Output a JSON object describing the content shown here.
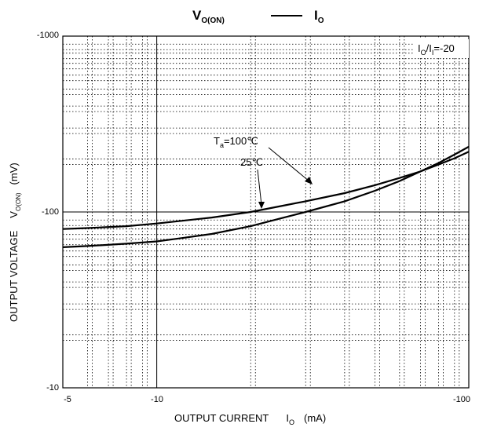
{
  "chart_data": {
    "type": "line",
    "title": {
      "left": "V",
      "left_sub": "O(ON)",
      "dash": "——",
      "right": "I",
      "right_sub": "O"
    },
    "xlabel": {
      "main": "OUTPUT CURRENT",
      "sym": "I",
      "sub": "O",
      "unit": "(mA)"
    },
    "ylabel": {
      "main": "OUTPUT VOLTAGE",
      "sym": "V",
      "sub": "O(ON)",
      "unit": "(mV)"
    },
    "x_scale": "log",
    "y_scale": "log",
    "xlim": [
      -5,
      -100
    ],
    "ylim": [
      -10,
      -1000
    ],
    "x_ticks": [
      "-5",
      "-10",
      "-100"
    ],
    "y_ticks": [
      "-10",
      "-100",
      "-1000"
    ],
    "grid": true,
    "condition": {
      "sym": "I",
      "sub1": "O",
      "slash": "/",
      "sym2": "I",
      "sub2": "I",
      "value": "=-20"
    },
    "series": [
      {
        "name": "Ta=100℃",
        "label": {
          "sym": "T",
          "sub": "a",
          "value": "=100℃"
        },
        "x": [
          -5,
          -6,
          -8,
          -10,
          -12,
          -15,
          -20,
          -25,
          -30,
          -40,
          -50,
          -60,
          -70,
          -80,
          -90,
          -100
        ],
        "y": [
          -80,
          -81,
          -83,
          -86,
          -89,
          -93,
          -100,
          -108,
          -115,
          -128,
          -142,
          -156,
          -170,
          -186,
          -202,
          -220
        ]
      },
      {
        "name": "25℃",
        "label": {
          "sym": "",
          "sub": "",
          "value": "25℃"
        },
        "x": [
          -5,
          -6,
          -8,
          -10,
          -12,
          -15,
          -20,
          -25,
          -30,
          -40,
          -50,
          -60,
          -70,
          -80,
          -90,
          -100
        ],
        "y": [
          -63,
          -64,
          -66,
          -68,
          -71,
          -75,
          -83,
          -92,
          -100,
          -115,
          -132,
          -150,
          -170,
          -190,
          -212,
          -235
        ]
      }
    ]
  }
}
